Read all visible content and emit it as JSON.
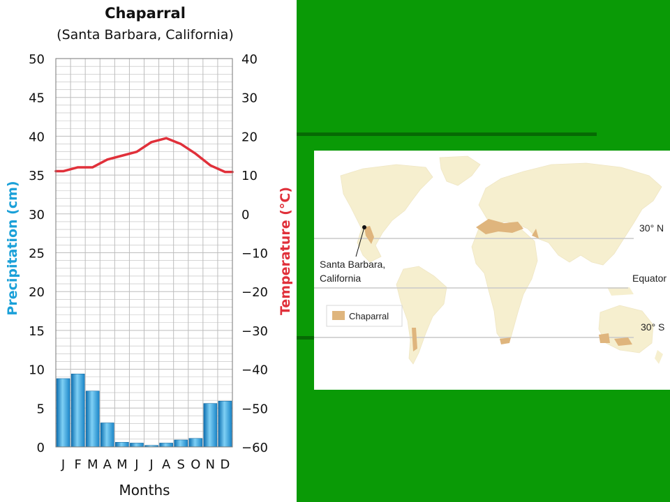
{
  "theme": {
    "green": "#0a9a06",
    "dark_stripe": "#066a04",
    "precip_color": "#1aa0d8",
    "temp_color": "#e0303a",
    "land_color": "#f6efcf",
    "chaparral_color": "#dfb57d"
  },
  "chart_data": {
    "type": "bar+line",
    "title": "Chaparral",
    "subtitle": "(Santa Barbara, California)",
    "xlabel": "Months",
    "ylabel_left": "Precipitation (cm)",
    "ylabel_right": "Temperature (°C)",
    "categories": [
      "J",
      "F",
      "M",
      "A",
      "M",
      "J",
      "J",
      "A",
      "S",
      "O",
      "N",
      "D"
    ],
    "ylim_left": [
      0,
      50
    ],
    "ylim_right": [
      -60,
      40
    ],
    "left_ticks": [
      "0",
      "5",
      "10",
      "15",
      "20",
      "25",
      "30",
      "35",
      "40",
      "45",
      "50"
    ],
    "right_ticks": [
      "−60",
      "−50",
      "−40",
      "−30",
      "−20",
      "−10",
      "0",
      "10",
      "20",
      "30",
      "40"
    ],
    "grid": true,
    "series": [
      {
        "name": "Precipitation",
        "type": "bar",
        "axis": "left",
        "values": [
          8.8,
          9.4,
          7.2,
          3.1,
          0.6,
          0.5,
          0.2,
          0.5,
          0.9,
          1.1,
          5.6,
          5.9
        ]
      },
      {
        "name": "Temperature",
        "type": "line",
        "axis": "right",
        "values": [
          11,
          12,
          12,
          14,
          15,
          16,
          18.5,
          19.5,
          18,
          15.5,
          12.5,
          10.8
        ]
      }
    ]
  },
  "map": {
    "labels": {
      "n30": "30° N",
      "equator": "Equator",
      "s30": "30° S",
      "city_line1": "Santa Barbara,",
      "city_line2": "California",
      "legend": "Chaparral"
    }
  }
}
